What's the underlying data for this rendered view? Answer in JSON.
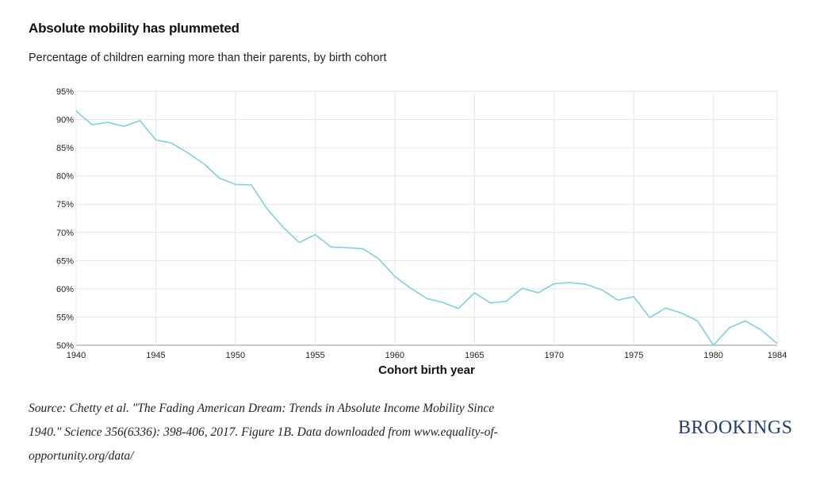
{
  "header": {
    "title": "Absolute mobility has plummeted",
    "subtitle": "Percentage of children earning more than their parents, by birth cohort"
  },
  "footer": {
    "source": "Source: Chetty et al. \"The Fading American Dream: Trends in Absolute Income Mobility Since 1940.\" Science 356(6336): 398-406, 2017. Figure 1B. Data downloaded from www.equality-of-opportunity.org/data/",
    "brand": "BROOKINGS"
  },
  "colors": {
    "line": "#7fcfe0",
    "grid": "#e6e6e6",
    "brand": "#1f3f73"
  },
  "chart_data": {
    "type": "line",
    "title": "Absolute mobility has plummeted",
    "subtitle": "Percentage of children earning more than their parents, by birth cohort",
    "xlabel": "Cohort birth year",
    "ylabel": "",
    "xlim": [
      1940,
      1984
    ],
    "ylim": [
      50,
      95
    ],
    "x_ticks": [
      1940,
      1945,
      1950,
      1955,
      1960,
      1965,
      1970,
      1975,
      1980,
      1984
    ],
    "y_ticks": [
      50,
      55,
      60,
      65,
      70,
      75,
      80,
      85,
      90,
      95
    ],
    "y_tick_labels": [
      "50%",
      "55%",
      "60%",
      "65%",
      "70%",
      "75%",
      "80%",
      "85%",
      "90%",
      "95%"
    ],
    "grid": true,
    "series": [
      {
        "x": [
          1940,
          1941,
          1942,
          1943,
          1944,
          1945,
          1946,
          1947,
          1948,
          1949,
          1950,
          1951,
          1952,
          1953,
          1954,
          1955,
          1956,
          1957,
          1958,
          1959,
          1960,
          1961,
          1962,
          1963,
          1964,
          1965,
          1966,
          1967,
          1968,
          1969,
          1970,
          1971,
          1972,
          1973,
          1974,
          1975,
          1976,
          1977,
          1978,
          1979,
          1980,
          1981,
          1982,
          1983,
          1984
        ],
        "values": [
          91.5,
          89.1,
          89.5,
          88.8,
          89.8,
          86.4,
          85.8,
          84.1,
          82.2,
          79.6,
          78.5,
          78.4,
          74.1,
          70.9,
          68.2,
          69.6,
          67.4,
          67.3,
          67.1,
          65.3,
          62.2,
          60.1,
          58.3,
          57.6,
          56.5,
          59.3,
          57.5,
          57.8,
          60.1,
          59.3,
          60.9,
          61.1,
          60.8,
          59.8,
          58.0,
          58.6,
          54.9,
          56.6,
          55.7,
          54.3,
          50.0,
          53.1,
          54.3,
          52.7,
          50.3
        ]
      }
    ]
  }
}
